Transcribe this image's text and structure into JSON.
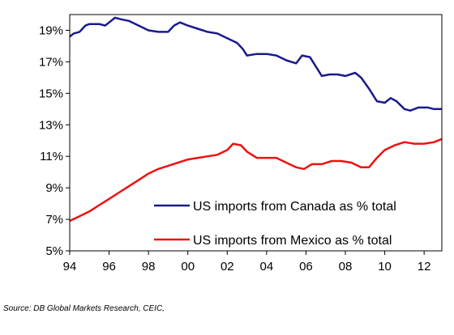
{
  "chart_data": {
    "type": "line",
    "title": "",
    "xlabel": "",
    "ylabel": "",
    "xlim": [
      1994,
      2012.9
    ],
    "ylim": [
      5,
      20
    ],
    "x_tick_labels": [
      "94",
      "96",
      "98",
      "00",
      "02",
      "04",
      "06",
      "08",
      "10",
      "12"
    ],
    "x_tick_values": [
      1994,
      1996,
      1998,
      2000,
      2002,
      2004,
      2006,
      2008,
      2010,
      2012
    ],
    "y_tick_labels": [
      "5%",
      "7%",
      "9%",
      "11%",
      "13%",
      "15%",
      "17%",
      "19%"
    ],
    "y_tick_values": [
      5,
      7,
      9,
      11,
      13,
      15,
      17,
      19
    ],
    "grid": false,
    "legend_placement": "bottom-right",
    "series": [
      {
        "name": "US imports from Canada as % total",
        "color": "#1a1a8c",
        "points": [
          [
            1994.0,
            18.6
          ],
          [
            1994.2,
            18.8
          ],
          [
            1994.5,
            18.9
          ],
          [
            1994.8,
            19.3
          ],
          [
            1995.0,
            19.4
          ],
          [
            1995.5,
            19.4
          ],
          [
            1995.8,
            19.3
          ],
          [
            1996.0,
            19.5
          ],
          [
            1996.3,
            19.8
          ],
          [
            1996.6,
            19.7
          ],
          [
            1997.0,
            19.6
          ],
          [
            1997.5,
            19.3
          ],
          [
            1998.0,
            19.0
          ],
          [
            1998.5,
            18.9
          ],
          [
            1999.0,
            18.9
          ],
          [
            1999.3,
            19.3
          ],
          [
            1999.6,
            19.5
          ],
          [
            2000.0,
            19.3
          ],
          [
            2000.5,
            19.1
          ],
          [
            2001.0,
            18.9
          ],
          [
            2001.5,
            18.8
          ],
          [
            2002.0,
            18.5
          ],
          [
            2002.5,
            18.2
          ],
          [
            2002.8,
            17.8
          ],
          [
            2003.0,
            17.4
          ],
          [
            2003.5,
            17.5
          ],
          [
            2004.0,
            17.5
          ],
          [
            2004.5,
            17.4
          ],
          [
            2005.0,
            17.1
          ],
          [
            2005.5,
            16.9
          ],
          [
            2005.8,
            17.4
          ],
          [
            2006.2,
            17.3
          ],
          [
            2006.5,
            16.7
          ],
          [
            2006.8,
            16.1
          ],
          [
            2007.2,
            16.2
          ],
          [
            2007.6,
            16.2
          ],
          [
            2008.0,
            16.1
          ],
          [
            2008.5,
            16.3
          ],
          [
            2008.8,
            16.0
          ],
          [
            2009.2,
            15.3
          ],
          [
            2009.6,
            14.5
          ],
          [
            2010.0,
            14.4
          ],
          [
            2010.3,
            14.7
          ],
          [
            2010.6,
            14.5
          ],
          [
            2011.0,
            14.0
          ],
          [
            2011.3,
            13.9
          ],
          [
            2011.7,
            14.1
          ],
          [
            2012.2,
            14.1
          ],
          [
            2012.5,
            14.0
          ],
          [
            2012.9,
            14.0
          ]
        ]
      },
      {
        "name": "US imports from Mexico as % total",
        "color": "#ee1111",
        "points": [
          [
            1994.0,
            6.9
          ],
          [
            1994.5,
            7.2
          ],
          [
            1995.0,
            7.5
          ],
          [
            1995.5,
            7.9
          ],
          [
            1996.0,
            8.3
          ],
          [
            1996.5,
            8.7
          ],
          [
            1997.0,
            9.1
          ],
          [
            1997.5,
            9.5
          ],
          [
            1998.0,
            9.9
          ],
          [
            1998.5,
            10.2
          ],
          [
            1999.0,
            10.4
          ],
          [
            1999.5,
            10.6
          ],
          [
            2000.0,
            10.8
          ],
          [
            2000.5,
            10.9
          ],
          [
            2001.0,
            11.0
          ],
          [
            2001.5,
            11.1
          ],
          [
            2002.0,
            11.4
          ],
          [
            2002.3,
            11.8
          ],
          [
            2002.7,
            11.7
          ],
          [
            2003.0,
            11.3
          ],
          [
            2003.5,
            10.9
          ],
          [
            2004.0,
            10.9
          ],
          [
            2004.5,
            10.9
          ],
          [
            2005.0,
            10.6
          ],
          [
            2005.5,
            10.3
          ],
          [
            2005.9,
            10.2
          ],
          [
            2006.3,
            10.5
          ],
          [
            2006.8,
            10.5
          ],
          [
            2007.3,
            10.7
          ],
          [
            2007.8,
            10.7
          ],
          [
            2008.3,
            10.6
          ],
          [
            2008.8,
            10.3
          ],
          [
            2009.2,
            10.3
          ],
          [
            2009.6,
            10.9
          ],
          [
            2010.0,
            11.4
          ],
          [
            2010.5,
            11.7
          ],
          [
            2011.0,
            11.9
          ],
          [
            2011.5,
            11.8
          ],
          [
            2012.0,
            11.8
          ],
          [
            2012.5,
            11.9
          ],
          [
            2012.9,
            12.1
          ]
        ]
      }
    ]
  },
  "source": "Source: DB Global Markets Research, CEIC,"
}
